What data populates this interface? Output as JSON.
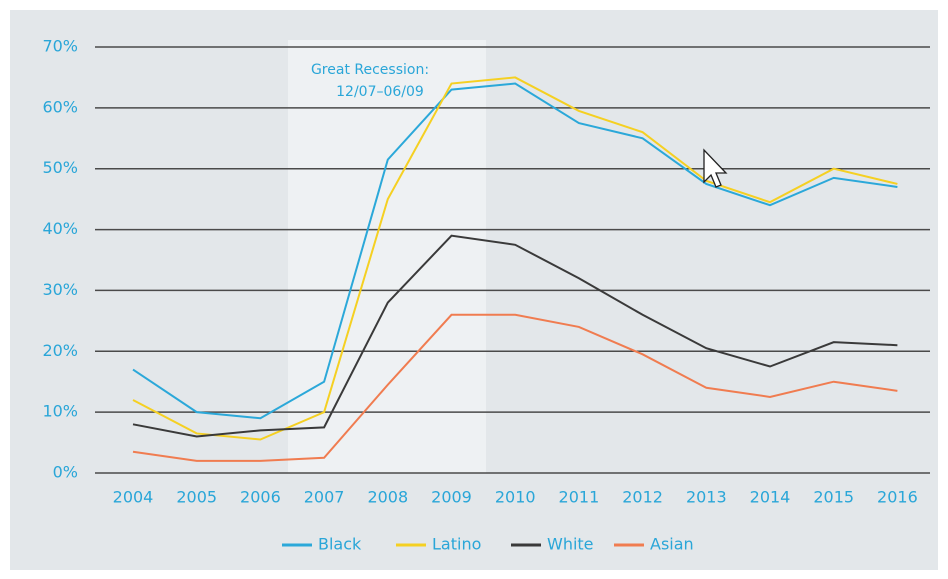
{
  "chart_data": {
    "type": "line",
    "annotation": [
      "Great Recession:",
      "12/07–06/09"
    ],
    "categories": [
      "2004",
      "2005",
      "2006",
      "2007",
      "2008",
      "2009",
      "2010",
      "2011",
      "2012",
      "2013",
      "2014",
      "2015",
      "2016"
    ],
    "series": [
      {
        "name": "Black",
        "color": "#2ba8d9",
        "values": [
          17,
          10,
          9,
          15,
          51.5,
          63,
          64,
          57.5,
          55,
          47.5,
          44,
          48.5,
          47
        ]
      },
      {
        "name": "Latino",
        "color": "#f5d022",
        "values": [
          12,
          6.5,
          5.5,
          10,
          45,
          64,
          65,
          59.5,
          56,
          48,
          44.5,
          50,
          47.5
        ]
      },
      {
        "name": "White",
        "color": "#3a3a3a",
        "values": [
          8,
          6,
          7,
          7.5,
          28,
          39,
          37.5,
          32,
          26,
          20.5,
          17.5,
          21.5,
          21
        ]
      },
      {
        "name": "Asian",
        "color": "#f07c50",
        "values": [
          3.5,
          2,
          2,
          2.5,
          14.5,
          26,
          26,
          24,
          19.5,
          14,
          12.5,
          15,
          13.5
        ]
      }
    ],
    "ylim": [
      0,
      70
    ],
    "yticks": [
      {
        "value": 0,
        "label": "0%"
      },
      {
        "value": 10,
        "label": "10%"
      },
      {
        "value": 20,
        "label": "20%"
      },
      {
        "value": 30,
        "label": "30%"
      },
      {
        "value": 40,
        "label": "40%"
      },
      {
        "value": 50,
        "label": "50%"
      },
      {
        "value": 60,
        "label": "60%"
      },
      {
        "value": 70,
        "label": "70%"
      }
    ],
    "grid": true,
    "legend": "bottom"
  }
}
